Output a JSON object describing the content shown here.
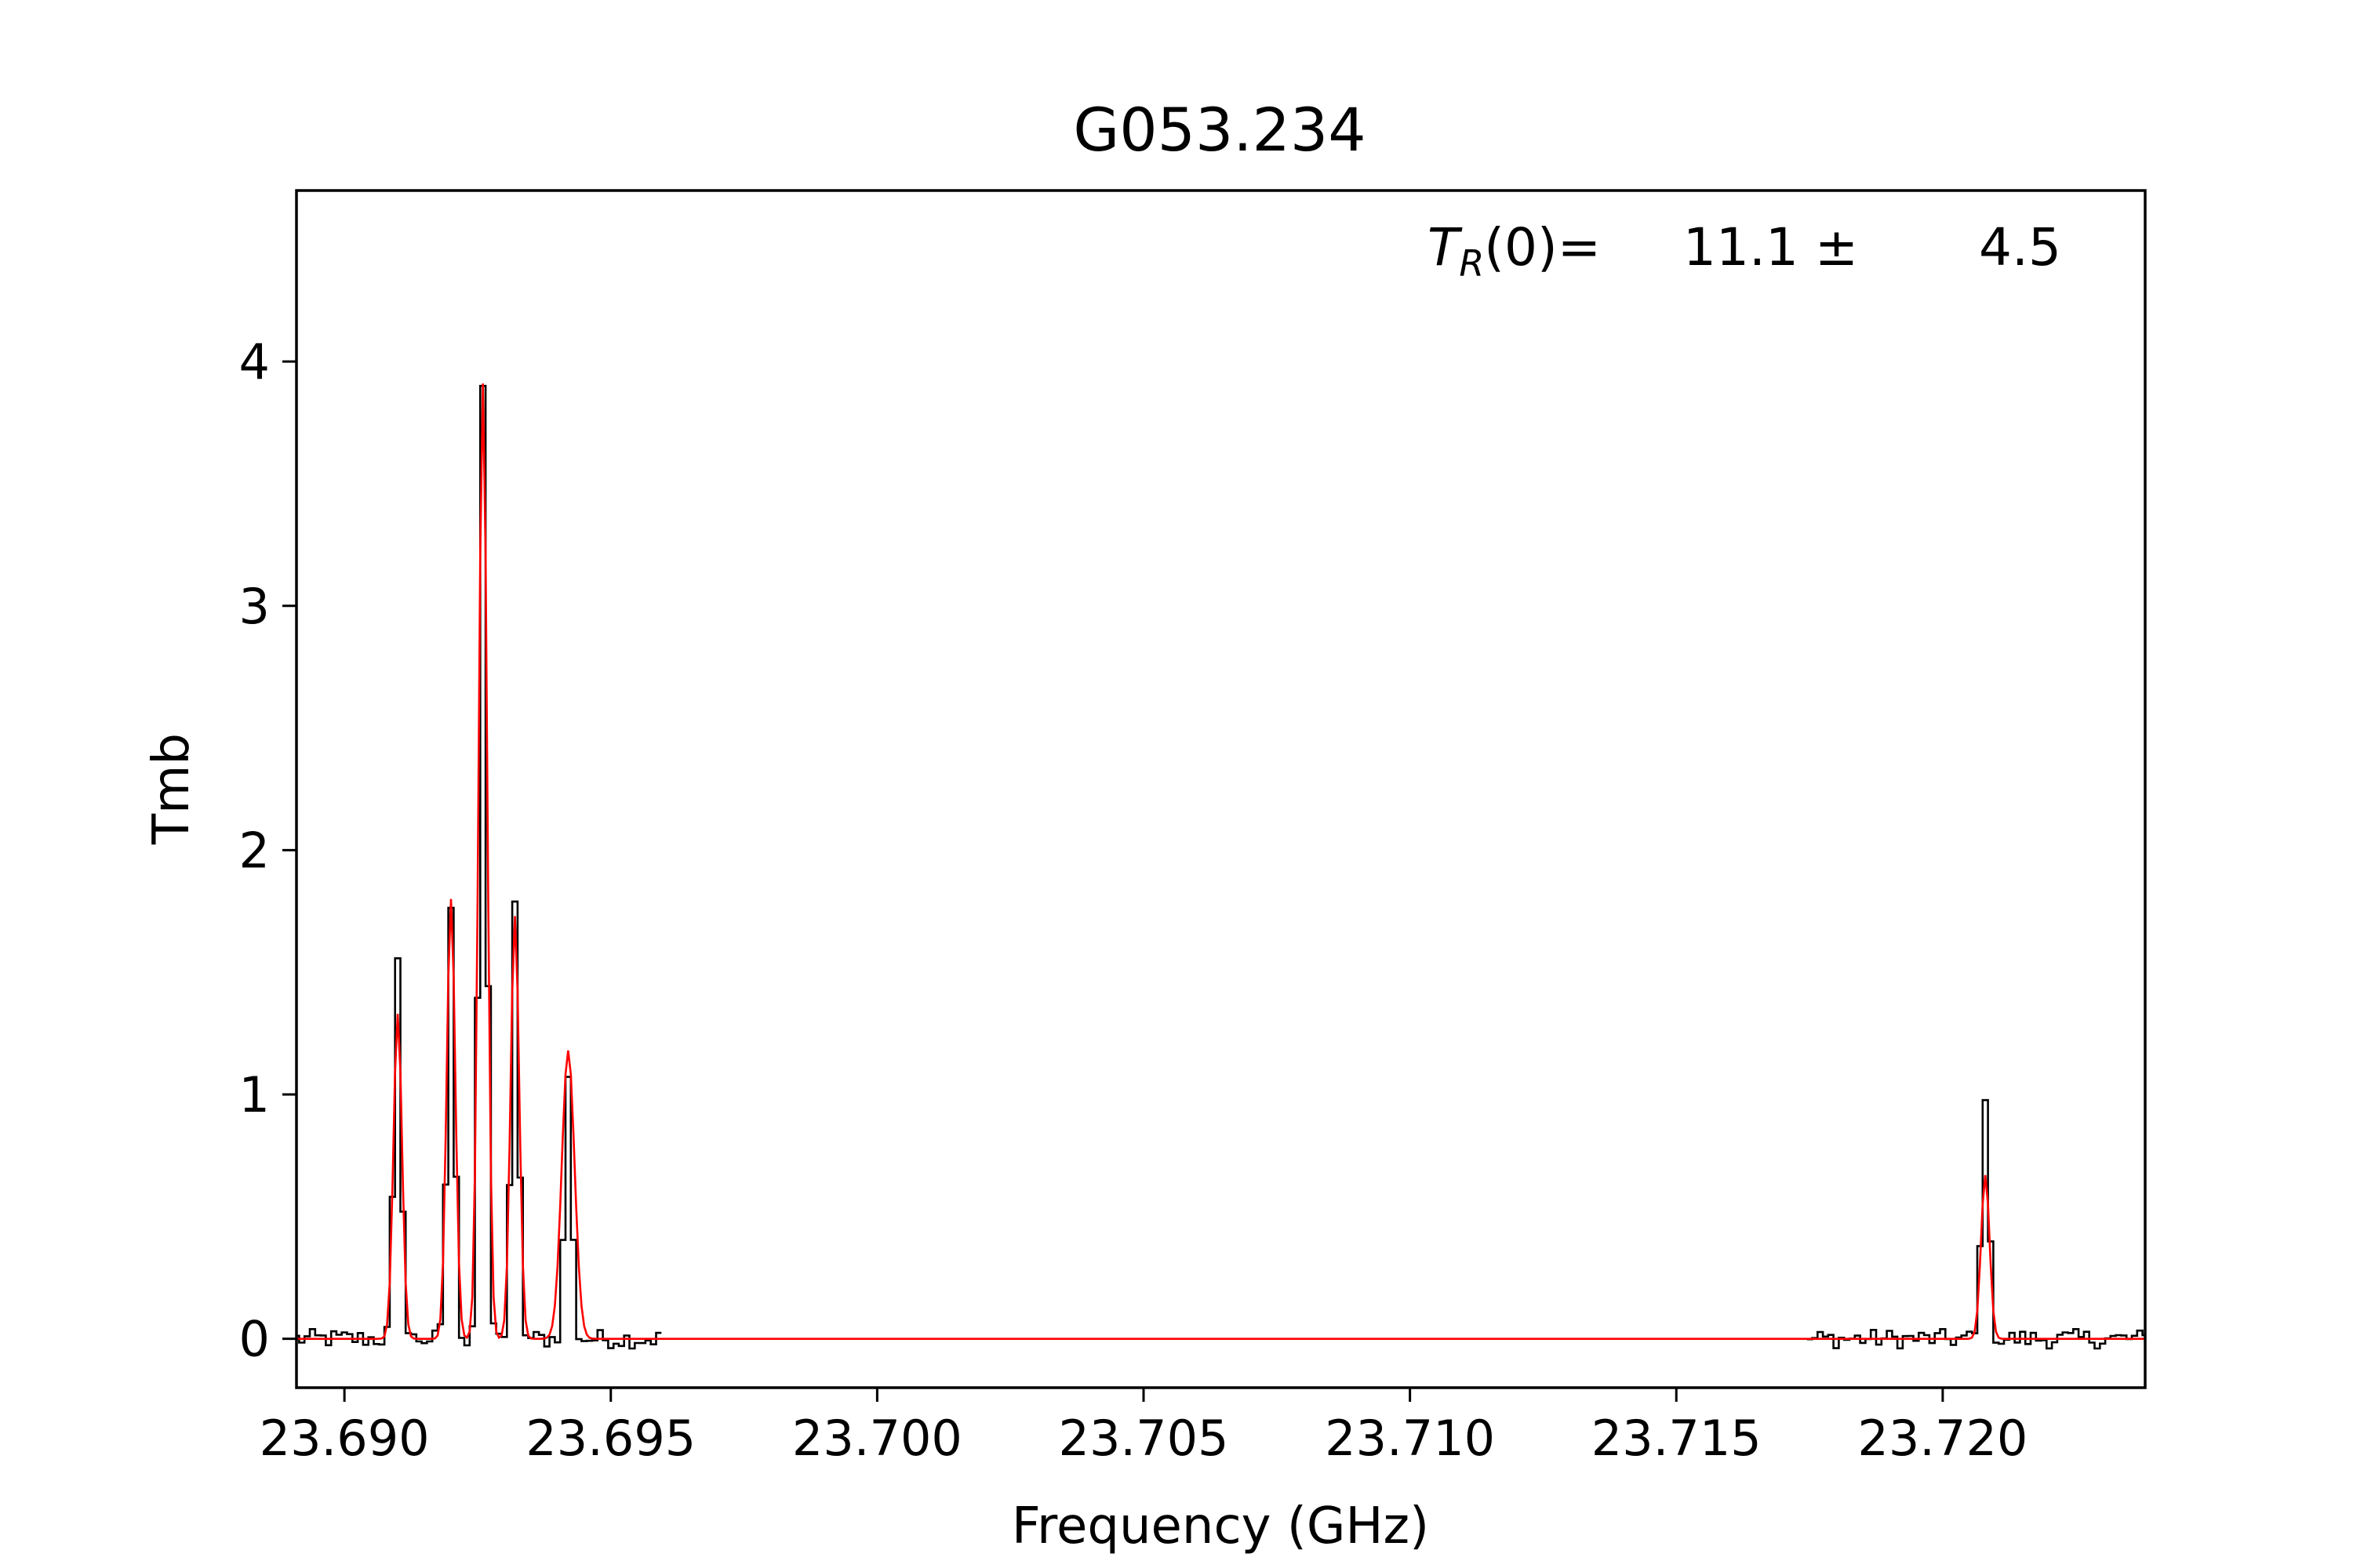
{
  "chart_data": {
    "type": "line",
    "title": "G053.234",
    "xlabel": "Frequency (GHz)",
    "ylabel": "Tmb",
    "xlim": [
      23.6891,
      23.7238
    ],
    "ylim": [
      -0.2,
      4.7
    ],
    "x_ticks": [
      23.69,
      23.695,
      23.7,
      23.705,
      23.71,
      23.715,
      23.72
    ],
    "x_tick_labels": [
      "23.690",
      "23.695",
      "23.700",
      "23.705",
      "23.710",
      "23.715",
      "23.720"
    ],
    "y_ticks": [
      0,
      1,
      2,
      3,
      4
    ],
    "y_tick_labels": [
      "0",
      "1",
      "2",
      "3",
      "4"
    ],
    "grid": false,
    "annotation": {
      "symbol": "T",
      "subscript": "R",
      "suffix": "(0)=",
      "value": "11.1 ±",
      "error": "4.5"
    },
    "series": [
      {
        "role": "observed",
        "style": "steps",
        "color": "#000000",
        "segments": [
          {
            "x_start": 23.6891,
            "x_end": 23.6959,
            "step": 0.0001,
            "peaks": [
              {
                "x": 23.691,
                "y": 1.53
              },
              {
                "x": 23.692,
                "y": 1.77
              },
              {
                "x": 23.6926,
                "y": 3.9
              },
              {
                "x": 23.6932,
                "y": 1.76
              },
              {
                "x": 23.6942,
                "y": 1.08
              }
            ]
          },
          {
            "x_start": 23.7175,
            "x_end": 23.7238,
            "step": 0.0001,
            "peaks": [
              {
                "x": 23.7208,
                "y": 1.01
              }
            ]
          }
        ]
      },
      {
        "role": "fit",
        "style": "line",
        "color": "#ff0000",
        "x_start": 23.6891,
        "x_end": 23.7238,
        "step": 5e-05,
        "peaks": [
          {
            "x": 23.691,
            "y": 1.33,
            "width": 8e-05
          },
          {
            "x": 23.692,
            "y": 1.8,
            "width": 8e-05
          },
          {
            "x": 23.6926,
            "y": 3.91,
            "width": 8e-05
          },
          {
            "x": 23.6932,
            "y": 1.73,
            "width": 8e-05
          },
          {
            "x": 23.6942,
            "y": 1.18,
            "width": 0.00012
          },
          {
            "x": 23.7208,
            "y": 0.67,
            "width": 8e-05
          }
        ]
      }
    ]
  }
}
